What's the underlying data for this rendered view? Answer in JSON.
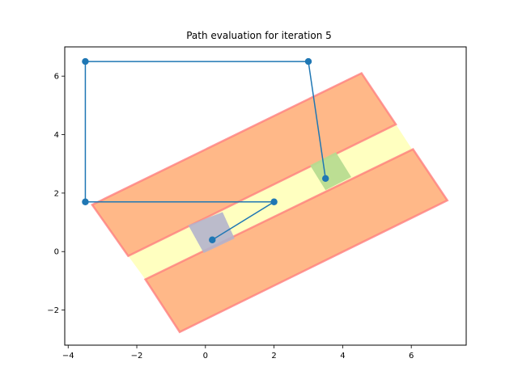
{
  "chart_data": {
    "type": "line",
    "title": "Path evaluation for iteration 5",
    "xlabel": "",
    "ylabel": "",
    "xlim": [
      -4.1,
      7.6
    ],
    "ylim": [
      -3.2,
      7.0
    ],
    "xticks": [
      -4,
      -2,
      0,
      2,
      4,
      6
    ],
    "yticks": [
      -2,
      0,
      2,
      4,
      6
    ],
    "xtick_labels": [
      "−4",
      "−2",
      "0",
      "2",
      "4",
      "6"
    ],
    "ytick_labels": [
      "−2",
      "0",
      "2",
      "4",
      "6"
    ],
    "grid": false,
    "legend": "none",
    "regions": [
      {
        "fill": "#ffffc0",
        "stroke": "none",
        "opacity": 1.0,
        "points": [
          [
            -2.25,
            -0.15
          ],
          [
            5.55,
            4.35
          ],
          [
            6.05,
            3.45
          ],
          [
            -1.75,
            -0.95
          ]
        ]
      },
      {
        "fill": "#ffa060",
        "stroke": "#ff8080",
        "opacity": 0.75,
        "points": [
          [
            -3.3,
            1.6
          ],
          [
            4.55,
            6.1
          ],
          [
            5.55,
            4.35
          ],
          [
            -2.25,
            -0.15
          ]
        ]
      },
      {
        "fill": "#ffa060",
        "stroke": "#ff8080",
        "opacity": 0.75,
        "points": [
          [
            -1.75,
            -0.95
          ],
          [
            6.05,
            3.5
          ],
          [
            7.05,
            1.75
          ],
          [
            -0.75,
            -2.75
          ]
        ]
      },
      {
        "fill": "#b4b4cc",
        "stroke": "none",
        "opacity": 0.9,
        "points": [
          [
            -0.5,
            0.9
          ],
          [
            0.5,
            1.35
          ],
          [
            0.85,
            0.45
          ],
          [
            -0.05,
            -0.05
          ]
        ]
      },
      {
        "fill": "#b8dc90",
        "stroke": "none",
        "opacity": 0.95,
        "points": [
          [
            3.05,
            2.95
          ],
          [
            3.8,
            3.4
          ],
          [
            4.25,
            2.55
          ],
          [
            3.5,
            2.1
          ]
        ]
      }
    ],
    "series": [
      {
        "color": "#1f77b4",
        "x": [
          3.5,
          3.0,
          -3.5,
          -3.5,
          2.0,
          0.2
        ],
        "y": [
          2.5,
          6.5,
          6.5,
          1.7,
          1.7,
          0.4
        ]
      }
    ]
  }
}
